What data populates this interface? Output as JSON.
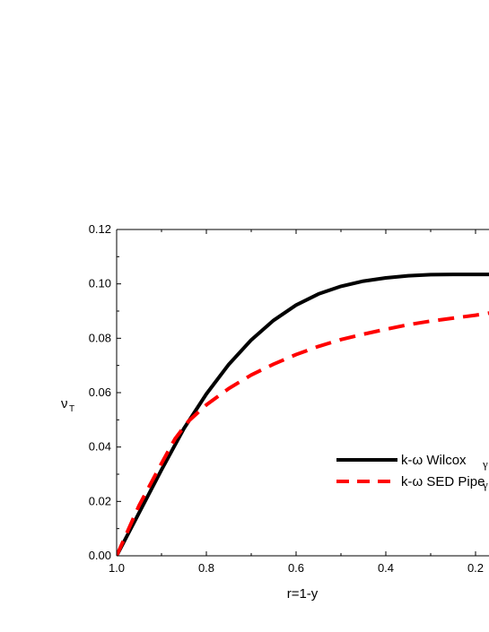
{
  "chart_data": {
    "type": "line",
    "xlabel": "r=1-y",
    "ylabel_main": "ν",
    "ylabel_sub": "T",
    "xlim": [
      1.0,
      0.16
    ],
    "ylim": [
      0.0,
      0.12
    ],
    "x_reversed": true,
    "x_ticks": [
      1.0,
      0.8,
      0.6,
      0.4,
      0.2
    ],
    "x_tick_labels": [
      "1.0",
      "0.8",
      "0.6",
      "0.4",
      "0.2"
    ],
    "y_ticks": [
      0.0,
      0.02,
      0.04,
      0.06,
      0.08,
      0.1,
      0.12
    ],
    "y_tick_labels": [
      "0.00",
      "0.02",
      "0.04",
      "0.06",
      "0.08",
      "0.10",
      "0.12"
    ],
    "legend_position": "lower-right",
    "stray_legend_glyph": "γ",
    "series": [
      {
        "name": "k-ω Wilcox",
        "color": "#000000",
        "style": "solid",
        "x": [
          1.0,
          0.95,
          0.9,
          0.85,
          0.8,
          0.75,
          0.7,
          0.65,
          0.6,
          0.55,
          0.5,
          0.45,
          0.4,
          0.35,
          0.3,
          0.25,
          0.2,
          0.16
        ],
        "y": [
          0.0,
          0.0158,
          0.0316,
          0.0468,
          0.0595,
          0.0704,
          0.0794,
          0.0866,
          0.0922,
          0.0963,
          0.0991,
          0.101,
          0.1022,
          0.103,
          0.1034,
          0.1035,
          0.1035,
          0.1035
        ]
      },
      {
        "name": "k-ω SED Pipe",
        "color": "#ff0000",
        "style": "dashed",
        "x": [
          1.0,
          0.95,
          0.9,
          0.87,
          0.84,
          0.8,
          0.75,
          0.7,
          0.65,
          0.6,
          0.55,
          0.5,
          0.45,
          0.4,
          0.35,
          0.3,
          0.25,
          0.2,
          0.16
        ],
        "y": [
          0.0,
          0.0185,
          0.034,
          0.043,
          0.0495,
          0.0555,
          0.0615,
          0.0665,
          0.0705,
          0.074,
          0.077,
          0.0795,
          0.0815,
          0.0833,
          0.085,
          0.0863,
          0.0874,
          0.0885,
          0.0895
        ]
      }
    ]
  }
}
